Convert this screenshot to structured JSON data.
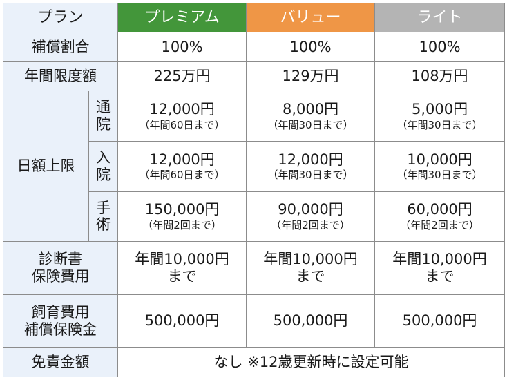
{
  "colors": {
    "premium": "#43963a",
    "value": "#ef9646",
    "lite": "#b4b4b4",
    "label_bg": "#eaf1fa",
    "border": "#8c8c8c"
  },
  "header": {
    "label": "プラン",
    "premium": "プレミアム",
    "value": "バリュー",
    "lite": "ライト"
  },
  "rows": {
    "coverage_ratio": {
      "label": "補償割合",
      "premium": "100%",
      "value": "100%",
      "lite": "100%"
    },
    "annual_limit": {
      "label": "年間限度額",
      "premium": "225万円",
      "value": "129万円",
      "lite": "108万円"
    },
    "daily_limit": {
      "label": "日額上限",
      "outpatient": {
        "label_1": "通",
        "label_2": "院",
        "premium": {
          "amount": "12,000円",
          "note": "（年間60日まで）"
        },
        "value": {
          "amount": "8,000円",
          "note": "（年間30日まで）"
        },
        "lite": {
          "amount": "5,000円",
          "note": "（年間30日まで）"
        }
      },
      "inpatient": {
        "label_1": "入",
        "label_2": "院",
        "premium": {
          "amount": "12,000円",
          "note": "（年間60日まで）"
        },
        "value": {
          "amount": "12,000円",
          "note": "（年間30日まで）"
        },
        "lite": {
          "amount": "10,000円",
          "note": "（年間30日まで）"
        }
      },
      "surgery": {
        "label_1": "手",
        "label_2": "術",
        "premium": {
          "amount": "150,000円",
          "note": "（年間2回まで）"
        },
        "value": {
          "amount": "90,000円",
          "note": "（年間2回まで）"
        },
        "lite": {
          "amount": "60,000円",
          "note": "（年間2回まで）"
        }
      }
    },
    "diagnosis": {
      "label_1": "診断書",
      "label_2": "保険費用",
      "premium": {
        "line_1": "年間10,000円",
        "line_2": "まで"
      },
      "value": {
        "line_1": "年間10,000円",
        "line_2": "まで"
      },
      "lite": {
        "line_1": "年間10,000円",
        "line_2": "まで"
      }
    },
    "owner_liability": {
      "label_1": "飼育費用",
      "label_2": "補償保険金",
      "premium": "500,000円",
      "value": "500,000円",
      "lite": "500,000円"
    },
    "deductible": {
      "label": "免責金額",
      "all": "なし ※12歳更新時に設定可能"
    }
  }
}
